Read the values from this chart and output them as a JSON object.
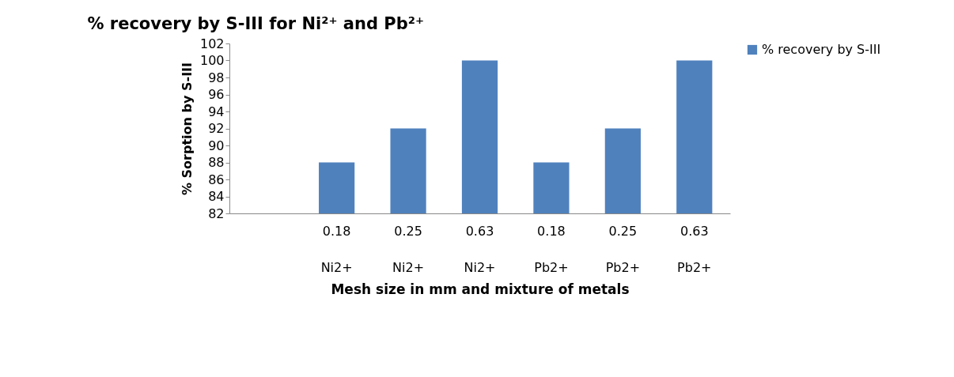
{
  "chart_data": {
    "type": "bar",
    "title": "% recovery by S-III for Ni²⁺ and Pb²⁺",
    "xlabel": "Mesh size in mm and mixture of  metals",
    "ylabel": "% Sorption by S-III",
    "categories": [
      null,
      "0.18 Ni2+",
      "0.25 Ni2+",
      "0.63 Ni2+",
      "0.18 Pb2+",
      "0.25 Pb2+",
      "0.63 Pb2+"
    ],
    "series": [
      {
        "name": "% recovery by S-III",
        "color": "#4f81bd",
        "values": [
          null,
          88,
          92,
          100,
          88,
          92,
          100
        ]
      }
    ],
    "ylim": [
      82,
      102
    ],
    "yticks": [
      82,
      84,
      86,
      88,
      90,
      92,
      94,
      96,
      98,
      100,
      102
    ],
    "grid": false,
    "legend": "right"
  }
}
